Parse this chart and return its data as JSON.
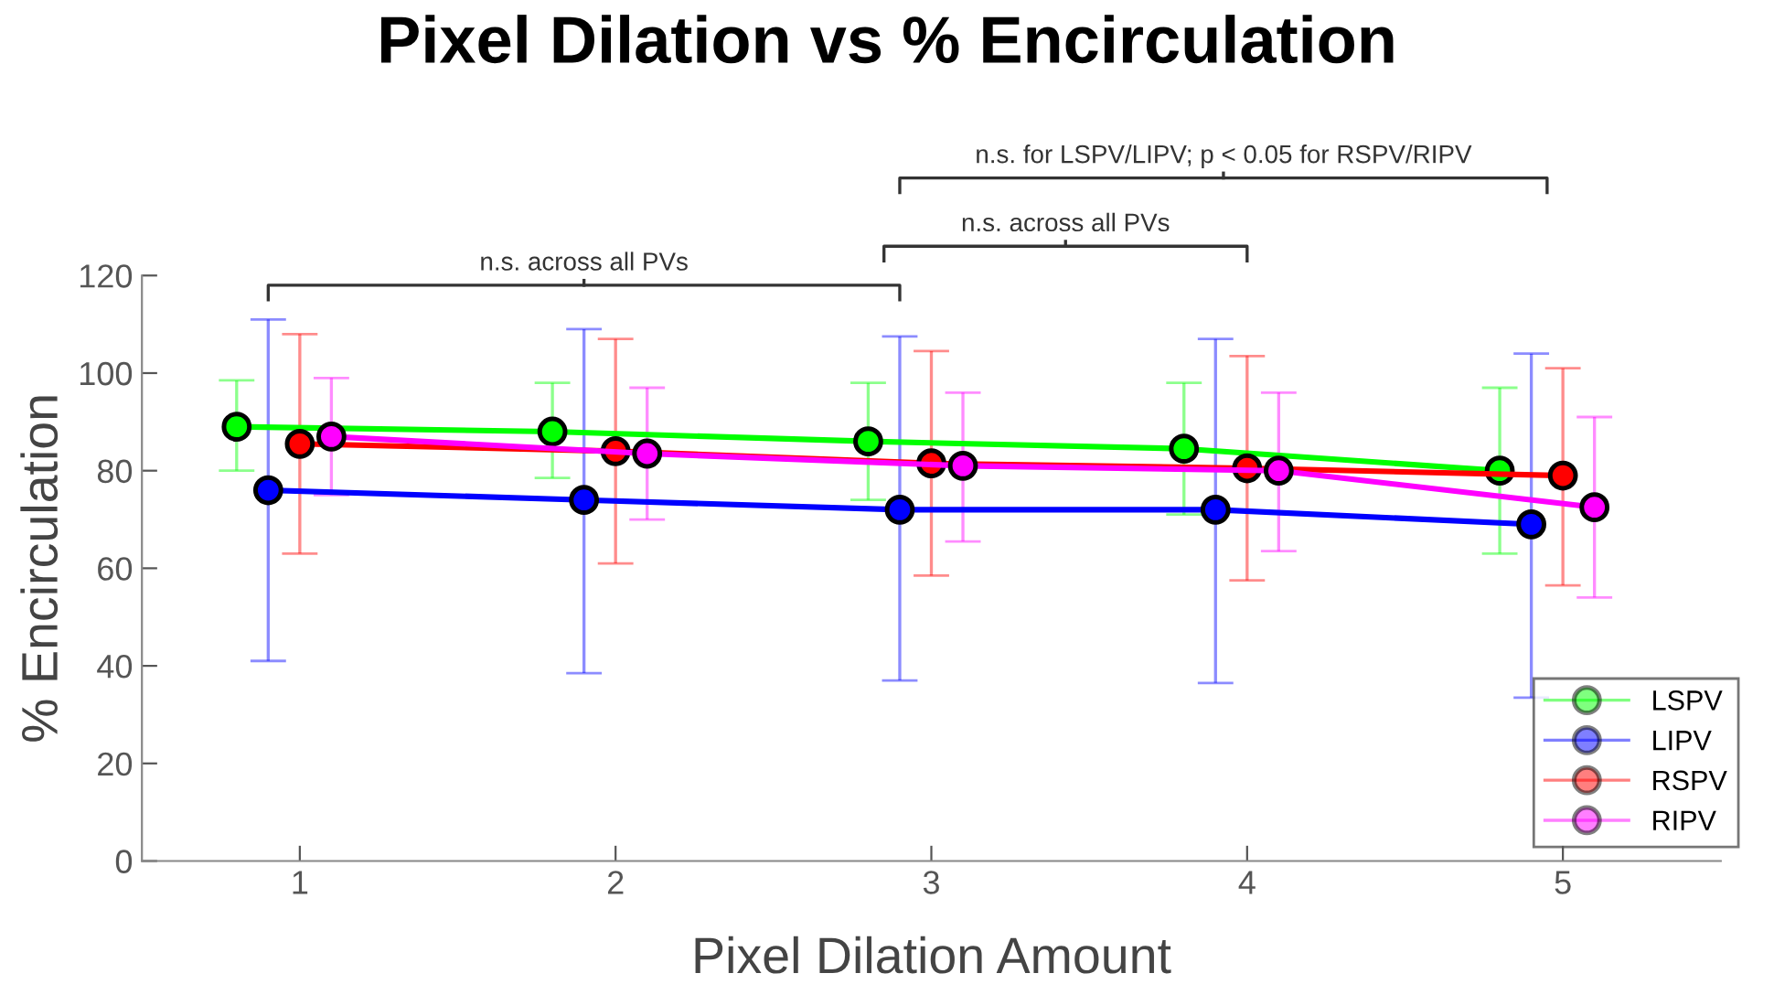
{
  "chart_data": {
    "type": "line",
    "title": "Pixel Dilation vs % Encirculation",
    "xlabel": "Pixel Dilation Amount",
    "ylabel": "% Encirculation",
    "xlim": [
      0.5,
      5.5
    ],
    "ylim": [
      0,
      120
    ],
    "xticks": [
      1,
      2,
      3,
      4,
      5
    ],
    "yticks": [
      0,
      20,
      40,
      60,
      80,
      100,
      120
    ],
    "grid": false,
    "legend": "bottom right",
    "marker": "circle",
    "line_style": "solid",
    "annotations": [
      "n.s. across all PVs",
      "n.s. across all PVs",
      "n.s. for LSPV/LIPV; p < 0.05 for RSPV/RIPV"
    ],
    "series": [
      {
        "name": "LSPV",
        "color": "#00ff00",
        "x": [
          0.8,
          1.8,
          2.8,
          3.8,
          4.8
        ],
        "values": [
          89,
          88,
          86,
          84.5,
          80
        ],
        "errors": [
          [
            80,
            98.5
          ],
          [
            78.5,
            98
          ],
          [
            74,
            98
          ],
          [
            71,
            98
          ],
          [
            63,
            97
          ]
        ]
      },
      {
        "name": "LIPV",
        "color": "#0000ff",
        "x": [
          0.9,
          1.9,
          2.9,
          3.9,
          4.9
        ],
        "values": [
          76,
          74,
          72,
          72,
          69
        ],
        "errors": [
          [
            41,
            111
          ],
          [
            38.5,
            109
          ],
          [
            37,
            107.5
          ],
          [
            36.5,
            107
          ],
          [
            33.5,
            104
          ]
        ]
      },
      {
        "name": "RSPV",
        "color": "#ff0000",
        "x": [
          1,
          2,
          3,
          4,
          5
        ],
        "values": [
          85.5,
          84,
          81.5,
          80.5,
          79
        ],
        "errors": [
          [
            63,
            108
          ],
          [
            61,
            107
          ],
          [
            58.5,
            104.5
          ],
          [
            57.5,
            103.5
          ],
          [
            56.5,
            101
          ]
        ]
      },
      {
        "name": "RIPV",
        "color": "#ff00ff",
        "x": [
          1.1,
          2.1,
          3.1,
          4.1,
          5.1
        ],
        "values": [
          87,
          83.5,
          81,
          80,
          72.5
        ],
        "errors": [
          [
            75,
            99
          ],
          [
            70,
            97
          ],
          [
            65.5,
            96
          ],
          [
            63.5,
            96
          ],
          [
            54,
            91
          ]
        ]
      }
    ]
  }
}
